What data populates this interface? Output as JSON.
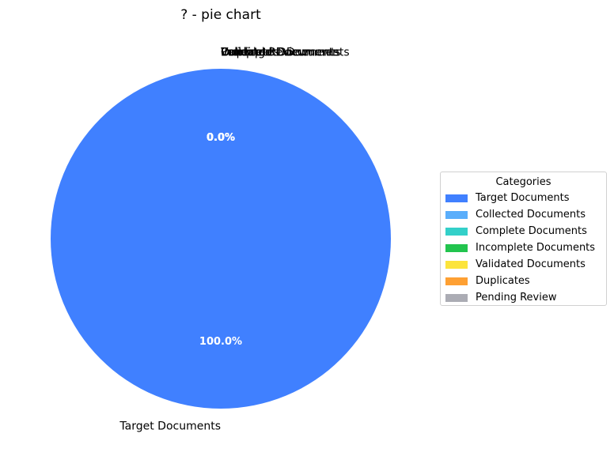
{
  "chart_data": {
    "type": "pie",
    "title": "? - pie chart",
    "categories": [
      "Target Documents",
      "Collected Documents",
      "Complete Documents",
      "Incomplete Documents",
      "Validated Documents",
      "Duplicates",
      "Pending Review"
    ],
    "values": [
      100,
      0,
      0,
      0,
      0,
      0,
      0
    ],
    "percent_labels": [
      "100.0%",
      "0.0%",
      "0.0%",
      "0.0%",
      "0.0%",
      "0.0%",
      "0.0%"
    ],
    "colors": [
      "#4080ff",
      "#5aaefb",
      "#33d0c9",
      "#22c44e",
      "#fce43c",
      "#fea033",
      "#abacb4"
    ],
    "legend": {
      "title": "Categories",
      "placement": "center-right"
    }
  }
}
